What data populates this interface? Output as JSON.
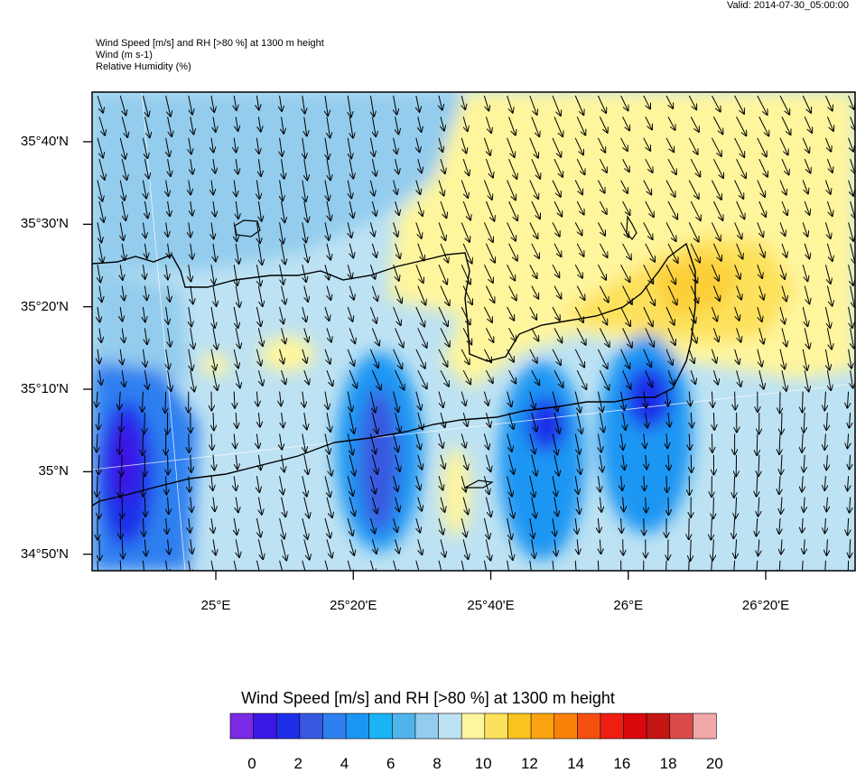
{
  "header": {
    "valid": "Valid: 2014-07-30_05:00:00",
    "title_lines": [
      "Wind Speed [m/s] and RH [>80 %] at 1300 m height",
      "Wind   (m s-1)",
      "Relative Humidity   (%)"
    ]
  },
  "map": {
    "lat_labels": [
      "35°40'N",
      "35°30'N",
      "35°20'N",
      "35°10'N",
      "35°N",
      "34°50'N"
    ],
    "lon_labels": [
      "25°E",
      "25°20'E",
      "25°40'E",
      "26°E",
      "26°20'E"
    ],
    "lat_range": [
      34.8,
      35.767
    ],
    "lon_range": [
      24.7,
      26.55
    ],
    "lat_ticks": [
      35.6667,
      35.5,
      35.3333,
      35.1667,
      35.0,
      34.8333
    ],
    "lon_ticks": [
      25.0,
      25.3333,
      25.6667,
      26.0,
      26.3333
    ]
  },
  "colorbar": {
    "title": "Wind Speed [m/s] and RH [>80 %] at 1300 m height",
    "colors": [
      "#7b2ae6",
      "#3a18e6",
      "#1f2ee9",
      "#3858e0",
      "#2f7ff0",
      "#1b96f3",
      "#1ab3f6",
      "#4fb4ea",
      "#93cced",
      "#bde2f3",
      "#fff59d",
      "#fde15c",
      "#fbc31f",
      "#fba30e",
      "#fa820a",
      "#f54f10",
      "#ef1e12",
      "#d8080d",
      "#c41515",
      "#d94b4b",
      "#f2a8a8"
    ],
    "labels": [
      "0",
      "2",
      "4",
      "6",
      "8",
      "10",
      "12",
      "14",
      "16",
      "18",
      "20"
    ]
  }
}
